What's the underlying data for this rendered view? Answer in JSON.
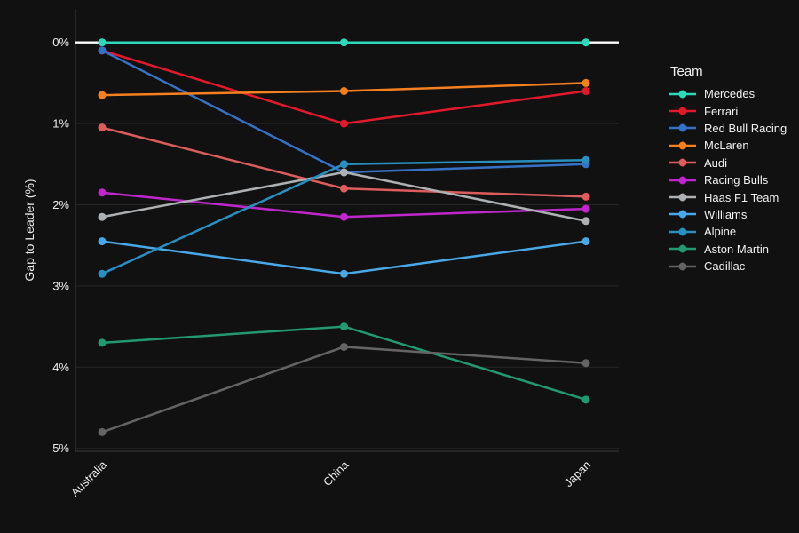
{
  "chart_data": {
    "type": "line",
    "title": "",
    "xlabel": "",
    "ylabel": "Gap to Leader (%)",
    "legend_title": "Team",
    "categories": [
      "Australia",
      "China",
      "Japan"
    ],
    "y_ticks": [
      "0%",
      "1%",
      "2%",
      "3%",
      "4%",
      "5%"
    ],
    "y_axis": {
      "min": 0,
      "max": 5,
      "inverted": true,
      "tick_step": 1,
      "unit": "%"
    },
    "grid": true,
    "legend_position": "right",
    "zero_reference_line": {
      "value": 0,
      "color": "#ffffff"
    },
    "series": [
      {
        "name": "Mercedes",
        "color": "#2fd8ba",
        "values": [
          0.0,
          0.0,
          0.0
        ]
      },
      {
        "name": "Ferrari",
        "color": "#e01a2b",
        "values": [
          0.1,
          1.0,
          0.6
        ]
      },
      {
        "name": "Red Bull Racing",
        "color": "#3671c6",
        "values": [
          0.1,
          1.6,
          1.5
        ]
      },
      {
        "name": "McLaren",
        "color": "#f58020",
        "values": [
          0.65,
          0.6,
          0.5
        ]
      },
      {
        "name": "Audi",
        "color": "#dd5d5c",
        "values": [
          1.05,
          1.8,
          1.9
        ]
      },
      {
        "name": "Racing Bulls",
        "color": "#bf27cd",
        "values": [
          1.85,
          2.15,
          2.05
        ]
      },
      {
        "name": "Haas F1 Team",
        "color": "#aeb1b4",
        "values": [
          2.15,
          1.6,
          2.2
        ]
      },
      {
        "name": "Williams",
        "color": "#4aa8e8",
        "values": [
          2.45,
          2.85,
          2.45
        ]
      },
      {
        "name": "Alpine",
        "color": "#2a8fc0",
        "values": [
          2.85,
          1.5,
          1.45
        ]
      },
      {
        "name": "Aston Martin",
        "color": "#229971",
        "values": [
          3.7,
          3.5,
          4.4
        ]
      },
      {
        "name": "Cadillac",
        "color": "#646464",
        "values": [
          4.8,
          3.75,
          3.95
        ]
      }
    ],
    "colors": {
      "background": "#111111",
      "text": "#f0f0f0",
      "gridline": "#272727",
      "axis_line": "#3d3d3d",
      "zeroline": "#ffffff"
    }
  }
}
